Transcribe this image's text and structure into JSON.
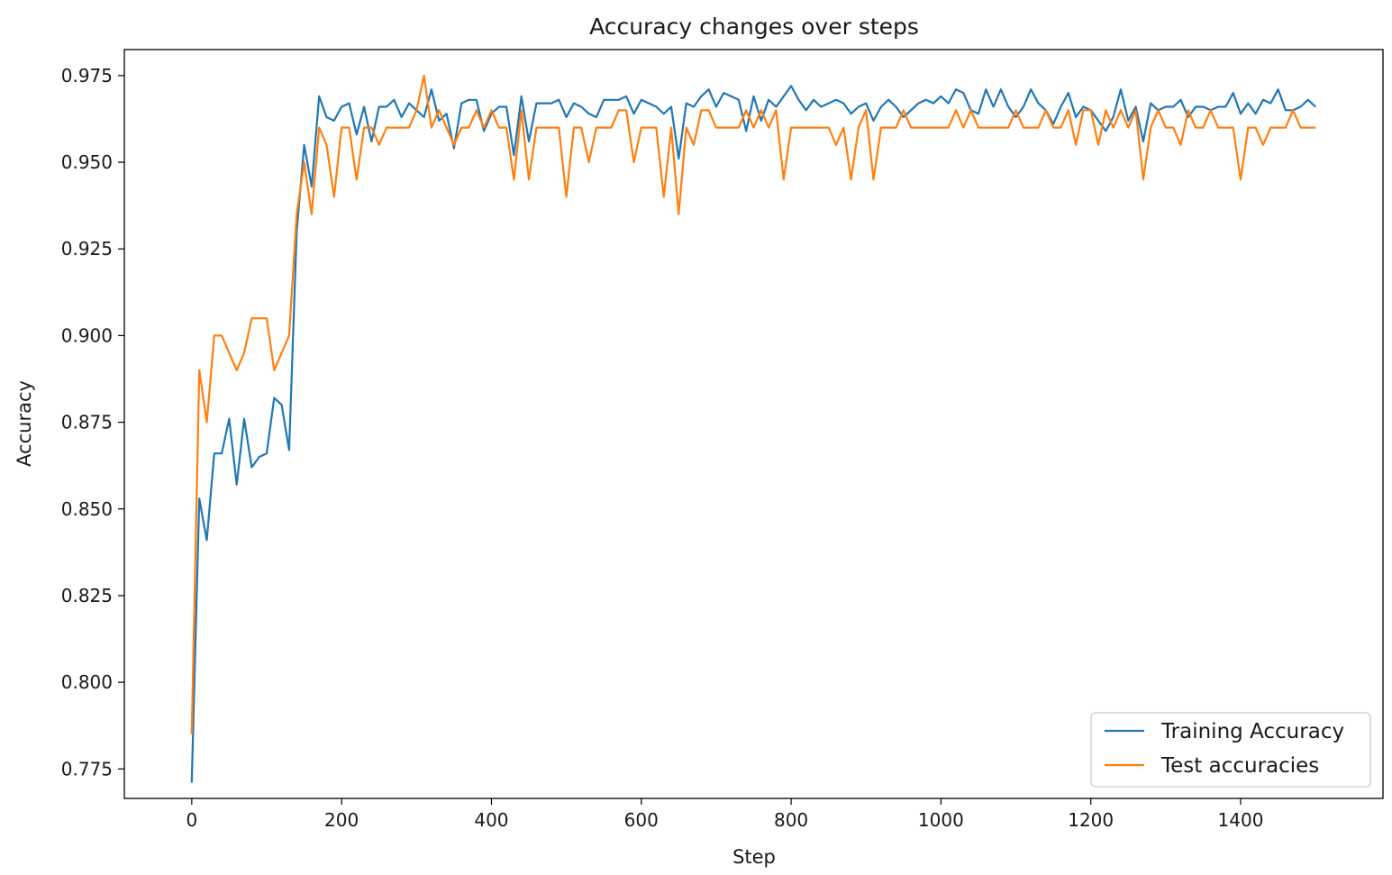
{
  "chart_data": {
    "type": "line",
    "title": "Accuracy changes over steps",
    "xlabel": "Step",
    "ylabel": "Accuracy",
    "xlim": [
      -90,
      1590
    ],
    "ylim": [
      0.7665,
      0.9825
    ],
    "xticks": [
      0,
      200,
      400,
      600,
      800,
      1000,
      1200,
      1400
    ],
    "xtick_labels": [
      "0",
      "200",
      "400",
      "600",
      "800",
      "1000",
      "1200",
      "1400"
    ],
    "yticks": [
      0.775,
      0.8,
      0.825,
      0.85,
      0.875,
      0.9,
      0.925,
      0.95,
      0.975
    ],
    "ytick_labels": [
      "0.775",
      "0.800",
      "0.825",
      "0.850",
      "0.875",
      "0.900",
      "0.925",
      "0.950",
      "0.975"
    ],
    "grid": false,
    "legend_position": "lower-right",
    "series": [
      {
        "name": "Training Accuracy",
        "color": "#1f77b4",
        "x": [
          0,
          10,
          20,
          30,
          40,
          50,
          60,
          70,
          80,
          90,
          100,
          110,
          120,
          130,
          140,
          150,
          160,
          170,
          180,
          190,
          200,
          210,
          220,
          230,
          240,
          250,
          260,
          270,
          280,
          290,
          300,
          310,
          320,
          330,
          340,
          350,
          360,
          370,
          380,
          390,
          400,
          410,
          420,
          430,
          440,
          450,
          460,
          470,
          480,
          490,
          500,
          510,
          520,
          530,
          540,
          550,
          560,
          570,
          580,
          590,
          600,
          610,
          620,
          630,
          640,
          650,
          660,
          670,
          680,
          690,
          700,
          710,
          720,
          730,
          740,
          750,
          760,
          770,
          780,
          790,
          800,
          810,
          820,
          830,
          840,
          850,
          860,
          870,
          880,
          890,
          900,
          910,
          920,
          930,
          940,
          950,
          960,
          970,
          980,
          990,
          1000,
          1010,
          1020,
          1030,
          1040,
          1050,
          1060,
          1070,
          1080,
          1090,
          1100,
          1110,
          1120,
          1130,
          1140,
          1150,
          1160,
          1170,
          1180,
          1190,
          1200,
          1210,
          1220,
          1230,
          1240,
          1250,
          1260,
          1270,
          1280,
          1290,
          1300,
          1310,
          1320,
          1330,
          1340,
          1350,
          1360,
          1370,
          1380,
          1390,
          1400,
          1410,
          1420,
          1430,
          1440,
          1450,
          1460,
          1470,
          1480,
          1490,
          1500
        ],
        "y": [
          0.771,
          0.853,
          0.841,
          0.866,
          0.866,
          0.876,
          0.857,
          0.876,
          0.862,
          0.865,
          0.866,
          0.882,
          0.88,
          0.867,
          0.93,
          0.955,
          0.943,
          0.969,
          0.963,
          0.962,
          0.966,
          0.967,
          0.958,
          0.966,
          0.956,
          0.966,
          0.966,
          0.968,
          0.963,
          0.967,
          0.965,
          0.963,
          0.971,
          0.962,
          0.964,
          0.954,
          0.967,
          0.968,
          0.968,
          0.959,
          0.964,
          0.966,
          0.966,
          0.952,
          0.969,
          0.956,
          0.967,
          0.967,
          0.967,
          0.968,
          0.963,
          0.967,
          0.966,
          0.964,
          0.963,
          0.968,
          0.968,
          0.968,
          0.969,
          0.964,
          0.968,
          0.967,
          0.966,
          0.964,
          0.966,
          0.951,
          0.967,
          0.966,
          0.969,
          0.971,
          0.966,
          0.97,
          0.969,
          0.968,
          0.959,
          0.969,
          0.962,
          0.968,
          0.966,
          0.969,
          0.972,
          0.968,
          0.965,
          0.968,
          0.966,
          0.967,
          0.968,
          0.967,
          0.964,
          0.966,
          0.967,
          0.962,
          0.966,
          0.968,
          0.966,
          0.963,
          0.965,
          0.967,
          0.968,
          0.967,
          0.969,
          0.967,
          0.971,
          0.97,
          0.965,
          0.964,
          0.971,
          0.966,
          0.971,
          0.966,
          0.963,
          0.966,
          0.971,
          0.967,
          0.965,
          0.961,
          0.966,
          0.97,
          0.963,
          0.966,
          0.965,
          0.962,
          0.959,
          0.963,
          0.971,
          0.962,
          0.966,
          0.956,
          0.967,
          0.965,
          0.966,
          0.966,
          0.968,
          0.963,
          0.966,
          0.966,
          0.965,
          0.966,
          0.966,
          0.97,
          0.964,
          0.967,
          0.964,
          0.968,
          0.967,
          0.971,
          0.965,
          0.965,
          0.966,
          0.968,
          0.966
        ]
      },
      {
        "name": "Test accuracies",
        "color": "#ff7f0e",
        "x": [
          0,
          10,
          20,
          30,
          40,
          50,
          60,
          70,
          80,
          90,
          100,
          110,
          120,
          130,
          140,
          150,
          160,
          170,
          180,
          190,
          200,
          210,
          220,
          230,
          240,
          250,
          260,
          270,
          280,
          290,
          300,
          310,
          320,
          330,
          340,
          350,
          360,
          370,
          380,
          390,
          400,
          410,
          420,
          430,
          440,
          450,
          460,
          470,
          480,
          490,
          500,
          510,
          520,
          530,
          540,
          550,
          560,
          570,
          580,
          590,
          600,
          610,
          620,
          630,
          640,
          650,
          660,
          670,
          680,
          690,
          700,
          710,
          720,
          730,
          740,
          750,
          760,
          770,
          780,
          790,
          800,
          810,
          820,
          830,
          840,
          850,
          860,
          870,
          880,
          890,
          900,
          910,
          920,
          930,
          940,
          950,
          960,
          970,
          980,
          990,
          1000,
          1010,
          1020,
          1030,
          1040,
          1050,
          1060,
          1070,
          1080,
          1090,
          1100,
          1110,
          1120,
          1130,
          1140,
          1150,
          1160,
          1170,
          1180,
          1190,
          1200,
          1210,
          1220,
          1230,
          1240,
          1250,
          1260,
          1270,
          1280,
          1290,
          1300,
          1310,
          1320,
          1330,
          1340,
          1350,
          1360,
          1370,
          1380,
          1390,
          1400,
          1410,
          1420,
          1430,
          1440,
          1450,
          1460,
          1470,
          1480,
          1490,
          1500
        ],
        "y": [
          0.785,
          0.89,
          0.875,
          0.9,
          0.9,
          0.895,
          0.89,
          0.895,
          0.905,
          0.905,
          0.905,
          0.89,
          0.895,
          0.9,
          0.935,
          0.95,
          0.935,
          0.96,
          0.955,
          0.94,
          0.96,
          0.96,
          0.945,
          0.96,
          0.96,
          0.955,
          0.96,
          0.96,
          0.96,
          0.96,
          0.965,
          0.975,
          0.96,
          0.965,
          0.96,
          0.955,
          0.96,
          0.96,
          0.965,
          0.96,
          0.965,
          0.96,
          0.96,
          0.945,
          0.965,
          0.945,
          0.96,
          0.96,
          0.96,
          0.96,
          0.94,
          0.96,
          0.96,
          0.95,
          0.96,
          0.96,
          0.96,
          0.965,
          0.965,
          0.95,
          0.96,
          0.96,
          0.96,
          0.94,
          0.96,
          0.935,
          0.96,
          0.955,
          0.965,
          0.965,
          0.96,
          0.96,
          0.96,
          0.96,
          0.965,
          0.96,
          0.965,
          0.96,
          0.965,
          0.945,
          0.96,
          0.96,
          0.96,
          0.96,
          0.96,
          0.96,
          0.955,
          0.96,
          0.945,
          0.96,
          0.965,
          0.945,
          0.96,
          0.96,
          0.96,
          0.965,
          0.96,
          0.96,
          0.96,
          0.96,
          0.96,
          0.96,
          0.965,
          0.96,
          0.965,
          0.96,
          0.96,
          0.96,
          0.96,
          0.96,
          0.965,
          0.96,
          0.96,
          0.96,
          0.965,
          0.96,
          0.96,
          0.965,
          0.955,
          0.965,
          0.965,
          0.955,
          0.965,
          0.96,
          0.965,
          0.96,
          0.965,
          0.945,
          0.96,
          0.965,
          0.96,
          0.96,
          0.955,
          0.965,
          0.96,
          0.96,
          0.965,
          0.96,
          0.96,
          0.96,
          0.945,
          0.96,
          0.96,
          0.955,
          0.96,
          0.96,
          0.96,
          0.965,
          0.96,
          0.96,
          0.96
        ]
      }
    ]
  }
}
